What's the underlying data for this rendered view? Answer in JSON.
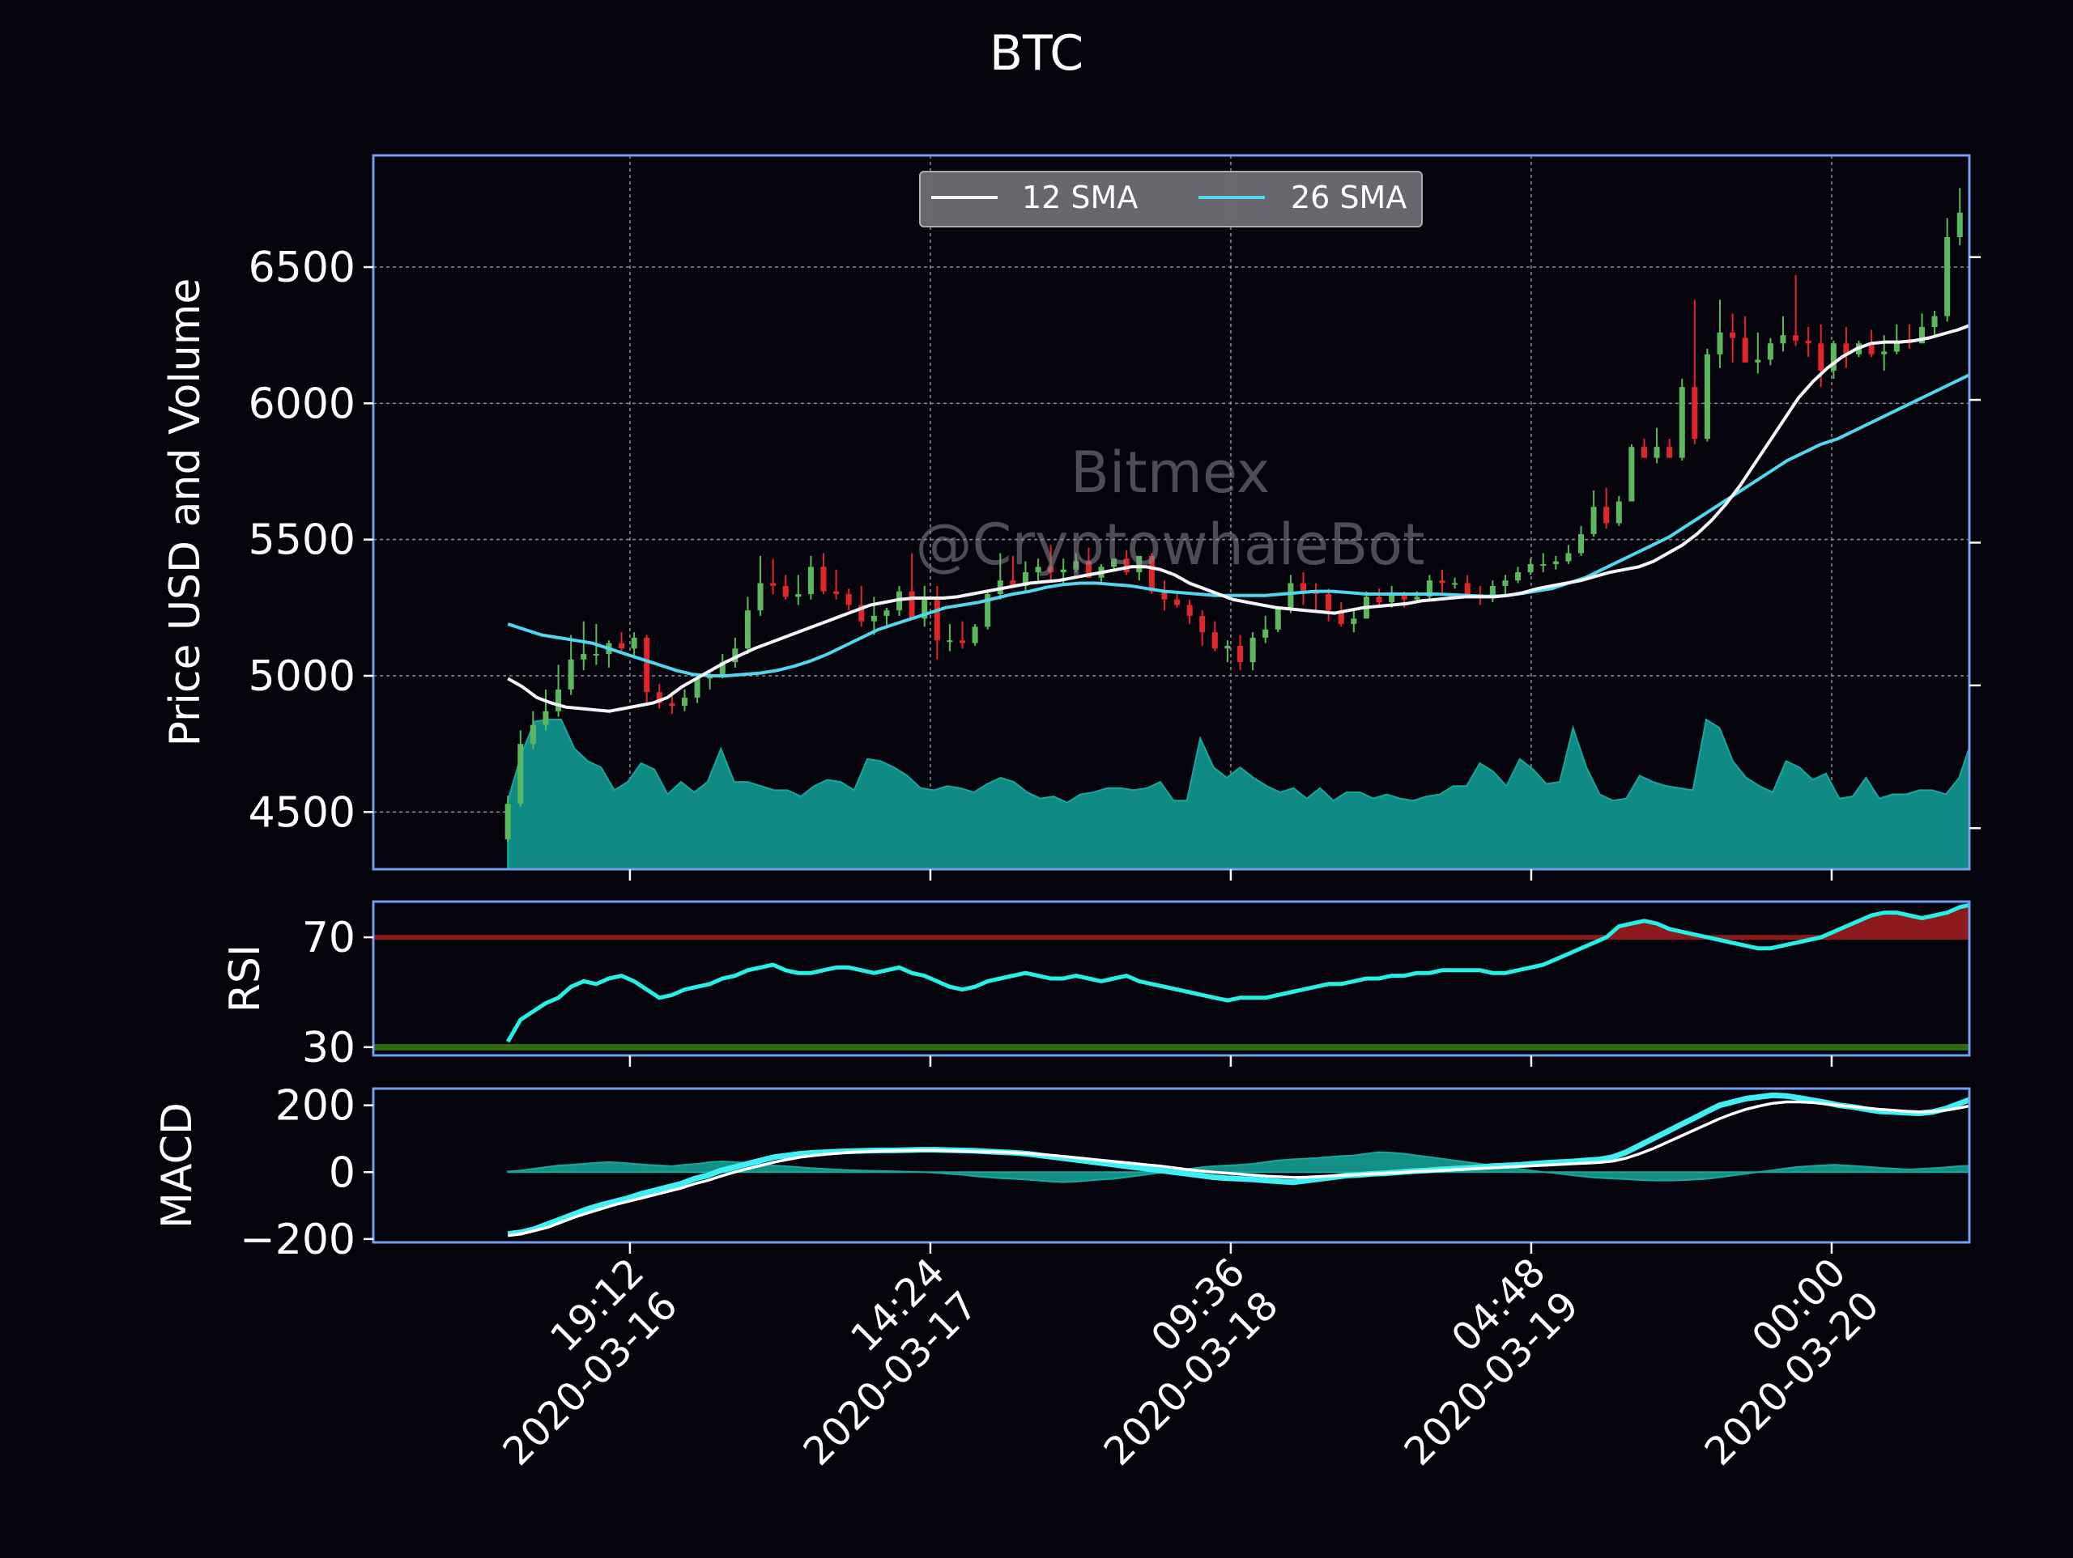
{
  "chart_data": {
    "type": "candlestick",
    "title": "BTC",
    "watermark": [
      "Bitmex",
      "@CryptowhaleBot"
    ],
    "colors": {
      "background": "#05030c",
      "frame": "#6f9ef2",
      "up": "#5cb85c",
      "down": "#e0262b",
      "volume": "#0f8a85",
      "sma12": "#f4f4f8",
      "sma26": "#4fd6f0",
      "rsi_line": "#23f0e6",
      "rsi_overbought": "#8c1a1a",
      "rsi_oversold": "#2e6b12",
      "macd_line": "#3ef0f5",
      "macd_signal": "#ffffff",
      "macd_hist": "#138f86"
    },
    "price_panel": {
      "ylabel": "Price USD and Volume",
      "ylim": [
        4290,
        6910
      ],
      "yticks": [
        4500,
        5000,
        5500,
        6000,
        6500
      ],
      "legend": [
        "12 SMA",
        "26 SMA"
      ],
      "legend_position": "top-center",
      "grid": true
    },
    "x": {
      "range": [
        -4.3,
        46.7
      ],
      "ticks": [
        {
          "x": 3.9,
          "label": "19:12\n2020-03-16"
        },
        {
          "x": 13.5,
          "label": "14:24\n2020-03-17"
        },
        {
          "x": 23.1,
          "label": "09:36\n2020-03-18"
        },
        {
          "x": 32.7,
          "label": "04:48\n2020-03-19"
        },
        {
          "x": 42.3,
          "label": "00:00\n2020-03-20"
        }
      ]
    },
    "candles": {
      "open": [
        4400,
        4530,
        4750,
        4820,
        4870,
        4950,
        5060,
        5080,
        5080,
        5120,
        5100,
        5140,
        4940,
        4900,
        4890,
        4920,
        4990,
        5000,
        5050,
        5100,
        5240,
        5340,
        5330,
        5290,
        5300,
        5400,
        5310,
        5300,
        5260,
        5200,
        5220,
        5240,
        5310,
        5210,
        5280,
        5130,
        5130,
        5120,
        5180,
        5300,
        5350,
        5330,
        5380,
        5400,
        5380,
        5390,
        5420,
        5360,
        5400,
        5430,
        5380,
        5440,
        5310,
        5280,
        5260,
        5220,
        5160,
        5100,
        5110,
        5050,
        5140,
        5170,
        5250,
        5340,
        5310,
        5300,
        5240,
        5190,
        5210,
        5290,
        5270,
        5300,
        5280,
        5290,
        5350,
        5340,
        5340,
        5300,
        5290,
        5330,
        5350,
        5380,
        5410,
        5410,
        5420,
        5450,
        5520,
        5620,
        5560,
        5640,
        5840,
        5800,
        5840,
        5800,
        6060,
        5870,
        6180,
        6260,
        6240,
        6150,
        6160,
        6220,
        6250,
        6230,
        6220,
        6120,
        6220,
        6180,
        6220,
        6180,
        6190,
        6230,
        6220,
        6280,
        6320,
        6610,
        6700
      ],
      "high": [
        4560,
        4800,
        4870,
        4950,
        5040,
        5150,
        5200,
        5190,
        5130,
        5160,
        5160,
        5150,
        4970,
        4940,
        4950,
        5000,
        5010,
        5080,
        5140,
        5290,
        5440,
        5430,
        5370,
        5370,
        5440,
        5450,
        5390,
        5320,
        5330,
        5290,
        5250,
        5330,
        5450,
        5330,
        5330,
        5190,
        5200,
        5190,
        5310,
        5450,
        5440,
        5420,
        5430,
        5480,
        5430,
        5450,
        5470,
        5410,
        5430,
        5460,
        5400,
        5450,
        5350,
        5300,
        5280,
        5240,
        5200,
        5130,
        5150,
        5160,
        5220,
        5250,
        5370,
        5380,
        5340,
        5320,
        5270,
        5240,
        5310,
        5320,
        5330,
        5310,
        5310,
        5370,
        5390,
        5360,
        5370,
        5330,
        5350,
        5370,
        5400,
        5430,
        5450,
        5440,
        5480,
        5550,
        5680,
        5690,
        5660,
        5850,
        5870,
        5910,
        5870,
        6090,
        6380,
        6200,
        6380,
        6330,
        6320,
        6260,
        6240,
        6320,
        6470,
        6280,
        6290,
        6230,
        6280,
        6230,
        6270,
        6250,
        6290,
        6290,
        6330,
        6340,
        6680,
        6790,
        6780
      ],
      "low": [
        4390,
        4520,
        4730,
        4800,
        4850,
        4930,
        5020,
        5040,
        5030,
        5090,
        5070,
        4900,
        4880,
        4860,
        4870,
        4900,
        4950,
        4990,
        5030,
        5080,
        5220,
        5300,
        5280,
        5260,
        5280,
        5300,
        5280,
        5240,
        5180,
        5150,
        5180,
        5220,
        5280,
        5180,
        5060,
        5090,
        5100,
        5110,
        5170,
        5280,
        5330,
        5310,
        5350,
        5350,
        5340,
        5380,
        5390,
        5340,
        5390,
        5370,
        5350,
        5300,
        5240,
        5250,
        5190,
        5110,
        5090,
        5050,
        5020,
        5020,
        5120,
        5160,
        5230,
        5260,
        5240,
        5200,
        5180,
        5160,
        5210,
        5250,
        5250,
        5250,
        5270,
        5280,
        5300,
        5320,
        5300,
        5260,
        5270,
        5300,
        5340,
        5370,
        5380,
        5390,
        5410,
        5440,
        5510,
        5540,
        5550,
        5640,
        5800,
        5780,
        5800,
        5790,
        5850,
        5860,
        6130,
        6150,
        6160,
        6110,
        6140,
        6190,
        6210,
        6170,
        6060,
        6090,
        6130,
        6170,
        6170,
        6120,
        6180,
        6200,
        6220,
        6250,
        6300,
        6580,
        6560
      ],
      "close": [
        4530,
        4750,
        4820,
        4870,
        4950,
        5060,
        5080,
        5080,
        5120,
        5100,
        5140,
        4940,
        4900,
        4890,
        4920,
        4990,
        5000,
        5050,
        5100,
        5240,
        5340,
        5330,
        5290,
        5300,
        5400,
        5310,
        5300,
        5260,
        5200,
        5220,
        5240,
        5310,
        5210,
        5280,
        5130,
        5130,
        5120,
        5180,
        5300,
        5350,
        5330,
        5380,
        5400,
        5380,
        5390,
        5420,
        5360,
        5400,
        5430,
        5380,
        5440,
        5310,
        5280,
        5260,
        5220,
        5160,
        5100,
        5110,
        5050,
        5140,
        5170,
        5250,
        5340,
        5310,
        5300,
        5240,
        5190,
        5210,
        5290,
        5270,
        5300,
        5280,
        5290,
        5350,
        5340,
        5340,
        5300,
        5290,
        5330,
        5350,
        5380,
        5410,
        5410,
        5420,
        5450,
        5520,
        5620,
        5560,
        5640,
        5840,
        5800,
        5840,
        5800,
        6060,
        5870,
        6180,
        6260,
        6240,
        6150,
        6160,
        6220,
        6250,
        6230,
        6220,
        6120,
        6220,
        6180,
        6220,
        6180,
        6190,
        6230,
        6220,
        6280,
        6320,
        6610,
        6700,
        6580
      ]
    },
    "volume": [
      330,
      550,
      710,
      720,
      720,
      580,
      520,
      490,
      380,
      420,
      510,
      480,
      360,
      420,
      370,
      420,
      580,
      420,
      420,
      400,
      380,
      380,
      350,
      400,
      430,
      420,
      380,
      530,
      520,
      490,
      450,
      390,
      380,
      400,
      390,
      370,
      410,
      440,
      420,
      370,
      340,
      350,
      320,
      360,
      370,
      390,
      390,
      380,
      390,
      420,
      330,
      330,
      630,
      490,
      440,
      490,
      440,
      400,
      370,
      390,
      340,
      390,
      330,
      370,
      370,
      340,
      360,
      340,
      330,
      350,
      360,
      400,
      400,
      510,
      470,
      400,
      530,
      480,
      410,
      420,
      680,
      490,
      360,
      330,
      340,
      450,
      420,
      400,
      390,
      380,
      720,
      680,
      520,
      440,
      400,
      370,
      520,
      490,
      430,
      460,
      340,
      350,
      440,
      340,
      360,
      360,
      380,
      380,
      360,
      440,
      630
    ],
    "sma12": [
      4990,
      4960,
      4920,
      4900,
      4885,
      4880,
      4875,
      4870,
      4880,
      4890,
      4900,
      4920,
      4960,
      4990,
      5020,
      5050,
      5075,
      5100,
      5120,
      5140,
      5160,
      5180,
      5200,
      5220,
      5240,
      5260,
      5270,
      5280,
      5285,
      5285,
      5285,
      5290,
      5300,
      5310,
      5320,
      5330,
      5340,
      5345,
      5350,
      5360,
      5370,
      5380,
      5390,
      5400,
      5400,
      5390,
      5370,
      5340,
      5320,
      5300,
      5280,
      5270,
      5260,
      5250,
      5245,
      5240,
      5235,
      5230,
      5240,
      5250,
      5255,
      5260,
      5265,
      5275,
      5280,
      5285,
      5290,
      5290,
      5290,
      5295,
      5305,
      5320,
      5330,
      5340,
      5350,
      5365,
      5380,
      5390,
      5400,
      5420,
      5450,
      5480,
      5520,
      5570,
      5630,
      5700,
      5780,
      5860,
      5940,
      6020,
      6080,
      6130,
      6170,
      6200,
      6220,
      6225,
      6225,
      6230,
      6240,
      6255,
      6270,
      6290
    ],
    "sma26": [
      5190,
      5170,
      5150,
      5140,
      5130,
      5120,
      5100,
      5080,
      5060,
      5040,
      5020,
      5005,
      5000,
      5000,
      5005,
      5010,
      5020,
      5035,
      5055,
      5080,
      5110,
      5140,
      5170,
      5190,
      5210,
      5230,
      5250,
      5260,
      5270,
      5285,
      5300,
      5310,
      5325,
      5335,
      5340,
      5340,
      5335,
      5330,
      5320,
      5310,
      5305,
      5300,
      5295,
      5295,
      5295,
      5295,
      5300,
      5305,
      5310,
      5310,
      5305,
      5300,
      5300,
      5300,
      5300,
      5300,
      5298,
      5295,
      5292,
      5293,
      5300,
      5310,
      5320,
      5340,
      5360,
      5390,
      5420,
      5450,
      5480,
      5510,
      5550,
      5590,
      5630,
      5670,
      5710,
      5750,
      5790,
      5820,
      5850,
      5870,
      5900,
      5930,
      5960,
      5990,
      6020,
      6050,
      6080,
      6110
    ],
    "rsi": {
      "ylabel": "RSI",
      "ylim": [
        27,
        83
      ],
      "yticks": [
        30,
        70
      ],
      "overbought": 70,
      "oversold": 30,
      "values": [
        32,
        40,
        43,
        46,
        48,
        52,
        54,
        53,
        55,
        56,
        54,
        51,
        48,
        49,
        51,
        52,
        53,
        55,
        56,
        58,
        59,
        60,
        58,
        57,
        57,
        58,
        59,
        59,
        58,
        57,
        58,
        59,
        57,
        56,
        54,
        52,
        51,
        52,
        54,
        55,
        56,
        57,
        56,
        55,
        55,
        56,
        55,
        54,
        55,
        56,
        54,
        53,
        52,
        51,
        50,
        49,
        48,
        47,
        48,
        48,
        48,
        49,
        50,
        51,
        52,
        53,
        53,
        54,
        55,
        55,
        56,
        56,
        57,
        57,
        58,
        58,
        58,
        58,
        57,
        57,
        58,
        59,
        60,
        62,
        64,
        66,
        68,
        70,
        74,
        75,
        76,
        75,
        73,
        72,
        71,
        70,
        69,
        68,
        67,
        66,
        66,
        67,
        68,
        69,
        70,
        72,
        74,
        76,
        78,
        79,
        79,
        78,
        77,
        78,
        79,
        81,
        82
      ],
      "fill_above_70": true
    },
    "macd": {
      "ylabel": "MACD",
      "ylim": [
        -210,
        250
      ],
      "yticks": [
        -200,
        0,
        200
      ],
      "macd_line": [
        -185,
        -180,
        -170,
        -155,
        -140,
        -125,
        -110,
        -98,
        -88,
        -78,
        -65,
        -55,
        -45,
        -35,
        -20,
        -10,
        5,
        15,
        25,
        35,
        45,
        50,
        55,
        58,
        60,
        62,
        63,
        64,
        65,
        65,
        66,
        67,
        67,
        66,
        65,
        64,
        62,
        60,
        58,
        55,
        50,
        45,
        40,
        35,
        30,
        25,
        20,
        15,
        10,
        5,
        0,
        -5,
        -10,
        -15,
        -18,
        -20,
        -22,
        -25,
        -28,
        -30,
        -25,
        -20,
        -15,
        -10,
        -8,
        -5,
        -3,
        0,
        3,
        5,
        8,
        10,
        12,
        15,
        18,
        20,
        22,
        25,
        28,
        30,
        32,
        35,
        38,
        45,
        60,
        80,
        100,
        120,
        140,
        160,
        180,
        200,
        210,
        220,
        225,
        230,
        228,
        222,
        215,
        208,
        200,
        195,
        188,
        182,
        180,
        178,
        176,
        180,
        190,
        205,
        220
      ],
      "signal_line": [
        -190,
        -185,
        -175,
        -165,
        -150,
        -135,
        -122,
        -110,
        -98,
        -88,
        -78,
        -68,
        -58,
        -48,
        -35,
        -25,
        -12,
        0,
        10,
        20,
        30,
        38,
        45,
        50,
        54,
        57,
        60,
        62,
        63,
        64,
        64,
        65,
        65,
        64,
        63,
        62,
        61,
        60,
        58,
        56,
        53,
        50,
        46,
        42,
        38,
        34,
        30,
        26,
        22,
        18,
        13,
        8,
        4,
        0,
        -3,
        -6,
        -9,
        -12,
        -14,
        -16,
        -15,
        -13,
        -11,
        -9,
        -7,
        -5,
        -3,
        -1,
        1,
        3,
        5,
        7,
        9,
        11,
        13,
        15,
        17,
        19,
        21,
        23,
        25,
        27,
        29,
        33,
        42,
        55,
        70,
        88,
        106,
        124,
        142,
        160,
        175,
        188,
        198,
        206,
        210,
        210,
        208,
        204,
        200,
        196,
        192,
        188,
        185,
        182,
        180,
        181,
        185,
        192,
        200
      ],
      "histogram": [
        2,
        5,
        10,
        15,
        20,
        22,
        25,
        28,
        30,
        28,
        25,
        22,
        20,
        18,
        22,
        25,
        30,
        32,
        30,
        28,
        25,
        20,
        18,
        15,
        12,
        10,
        8,
        6,
        5,
        4,
        3,
        2,
        1,
        0,
        -2,
        -5,
        -8,
        -12,
        -15,
        -18,
        -20,
        -22,
        -25,
        -28,
        -30,
        -28,
        -25,
        -22,
        -20,
        -15,
        -10,
        -5,
        0,
        5,
        10,
        15,
        18,
        20,
        22,
        25,
        30,
        35,
        38,
        40,
        42,
        45,
        48,
        50,
        55,
        60,
        58,
        55,
        50,
        45,
        40,
        35,
        30,
        25,
        20,
        15,
        10,
        5,
        0,
        -3,
        -8,
        -12,
        -16,
        -18,
        -20,
        -22,
        -24,
        -25,
        -25,
        -24,
        -22,
        -20,
        -15,
        -10,
        -5,
        0,
        5,
        10,
        15,
        18,
        20,
        22,
        20,
        18,
        15,
        12,
        10,
        8,
        10,
        12,
        15,
        18,
        20
      ]
    }
  }
}
